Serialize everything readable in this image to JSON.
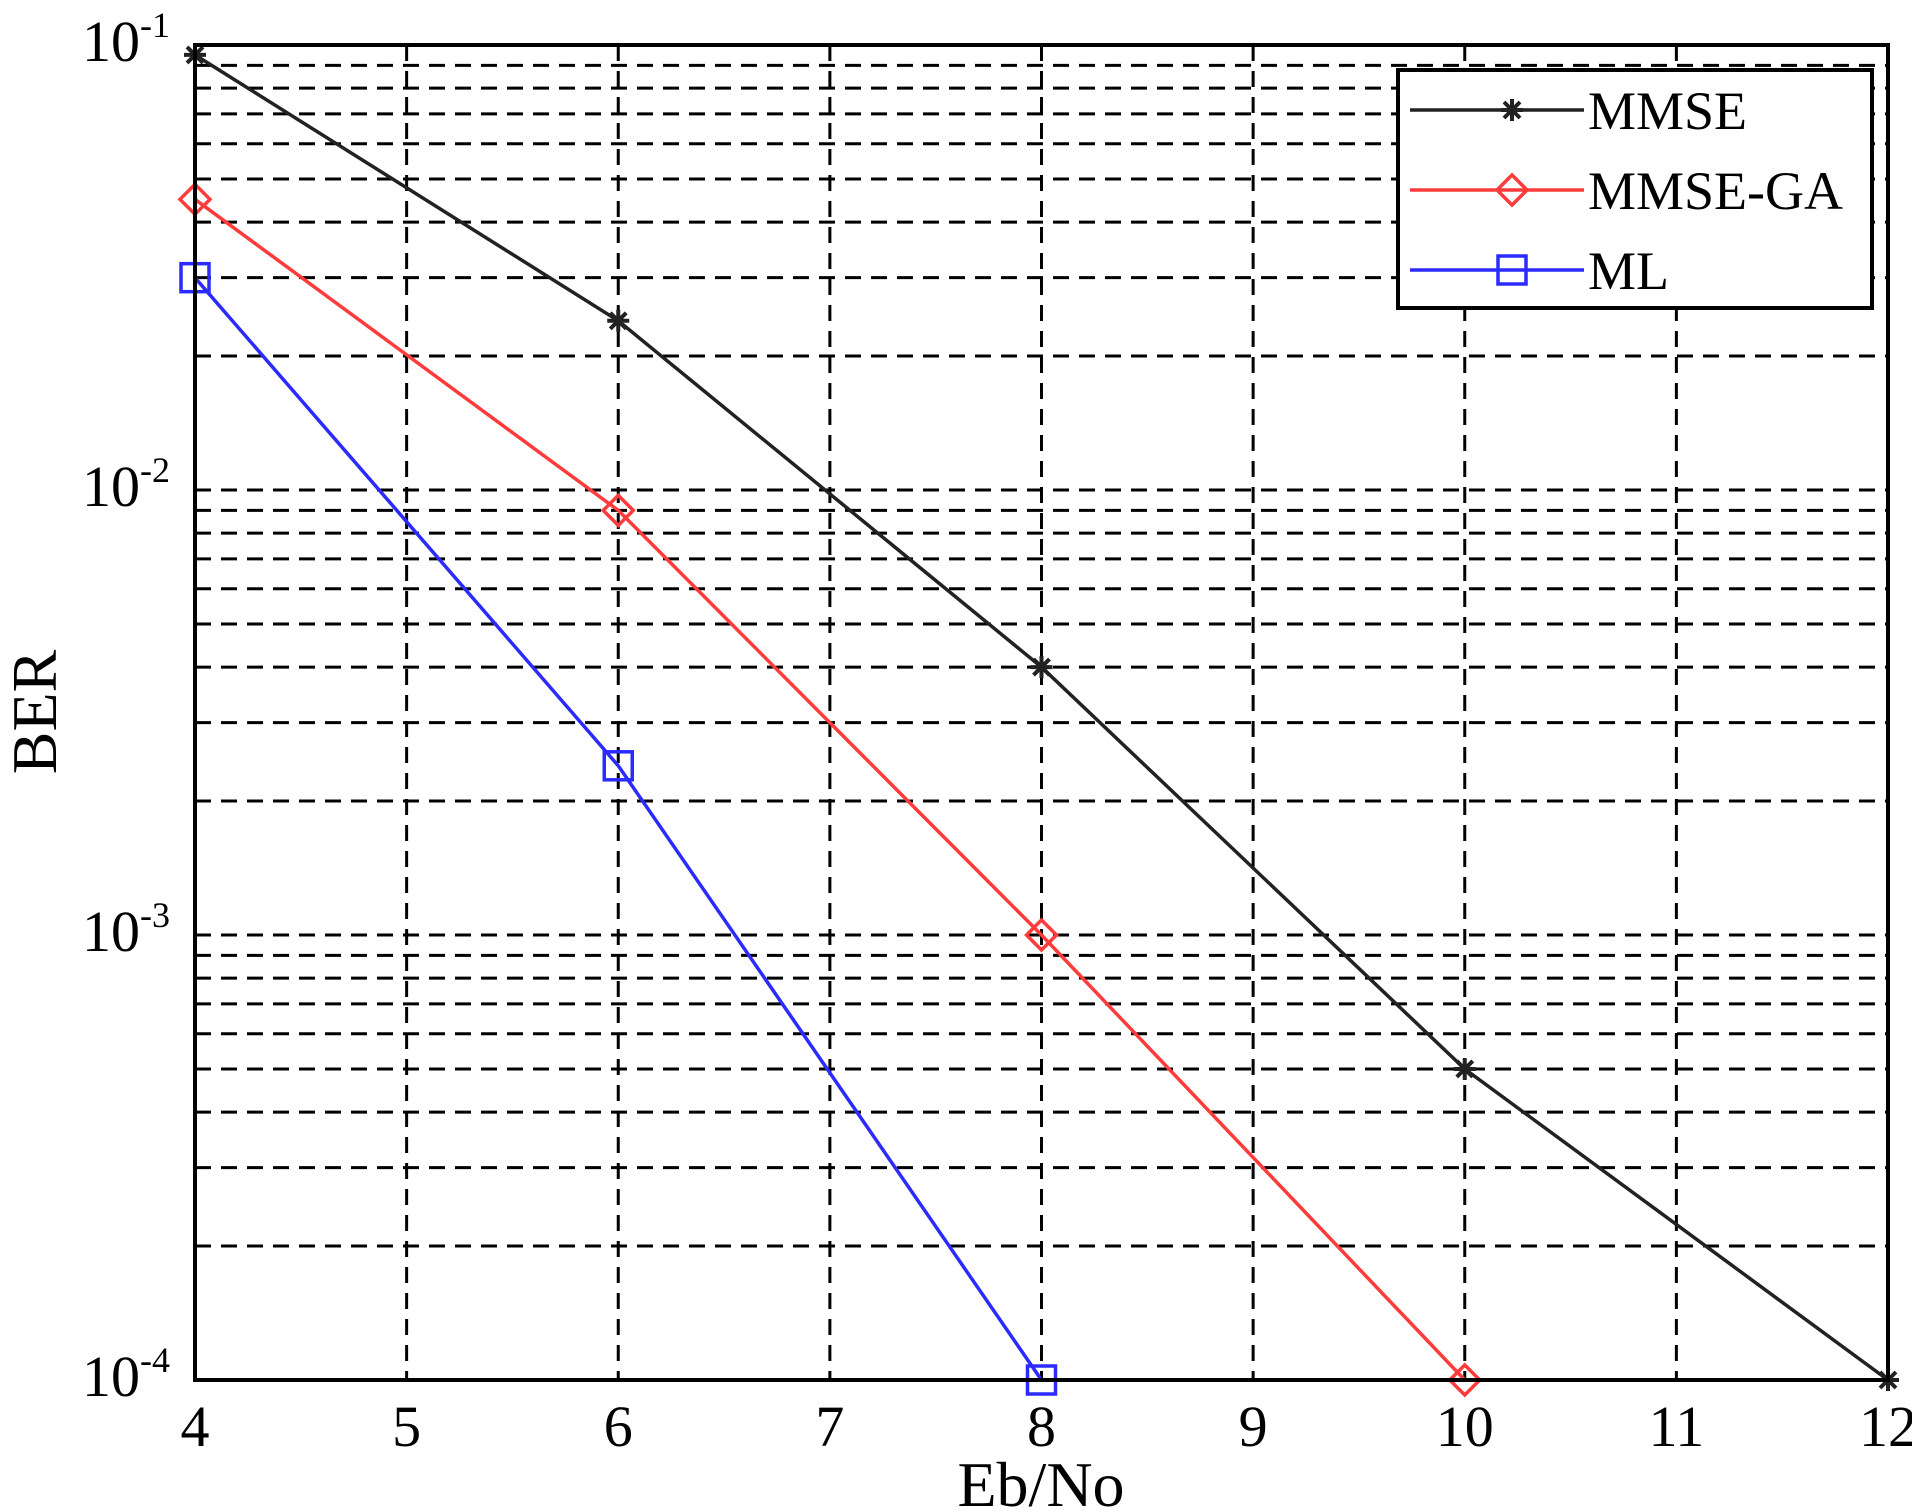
{
  "chart_data": {
    "type": "line",
    "xlabel": "Eb/No",
    "ylabel": "BER",
    "yscale": "log",
    "xlim": [
      4,
      12
    ],
    "ylim": [
      0.0001,
      0.1
    ],
    "grid": true,
    "legend_position": "top-right",
    "x_ticks": [
      "4",
      "5",
      "6",
      "7",
      "8",
      "9",
      "10",
      "11",
      "12"
    ],
    "y_ticks": [
      {
        "base": "10",
        "exp": "-1",
        "value": 0.1
      },
      {
        "base": "10",
        "exp": "-2",
        "value": 0.01
      },
      {
        "base": "10",
        "exp": "-3",
        "value": 0.001
      },
      {
        "base": "10",
        "exp": "-4",
        "value": 0.0001
      }
    ],
    "series": [
      {
        "name": "MMSE",
        "color": "#222222",
        "marker": "star",
        "x": [
          4,
          6,
          8,
          10,
          12
        ],
        "y": [
          0.095,
          0.024,
          0.004,
          0.0005,
          0.0001
        ]
      },
      {
        "name": "MMSE-GA",
        "color": "#ff3b3b",
        "marker": "diamond",
        "x": [
          4,
          6,
          8,
          10
        ],
        "y": [
          0.045,
          0.009,
          0.001,
          0.0001
        ]
      },
      {
        "name": "ML",
        "color": "#2b2bff",
        "marker": "square",
        "x": [
          4,
          6,
          8
        ],
        "y": [
          0.03,
          0.0024,
          0.0001
        ]
      }
    ]
  }
}
